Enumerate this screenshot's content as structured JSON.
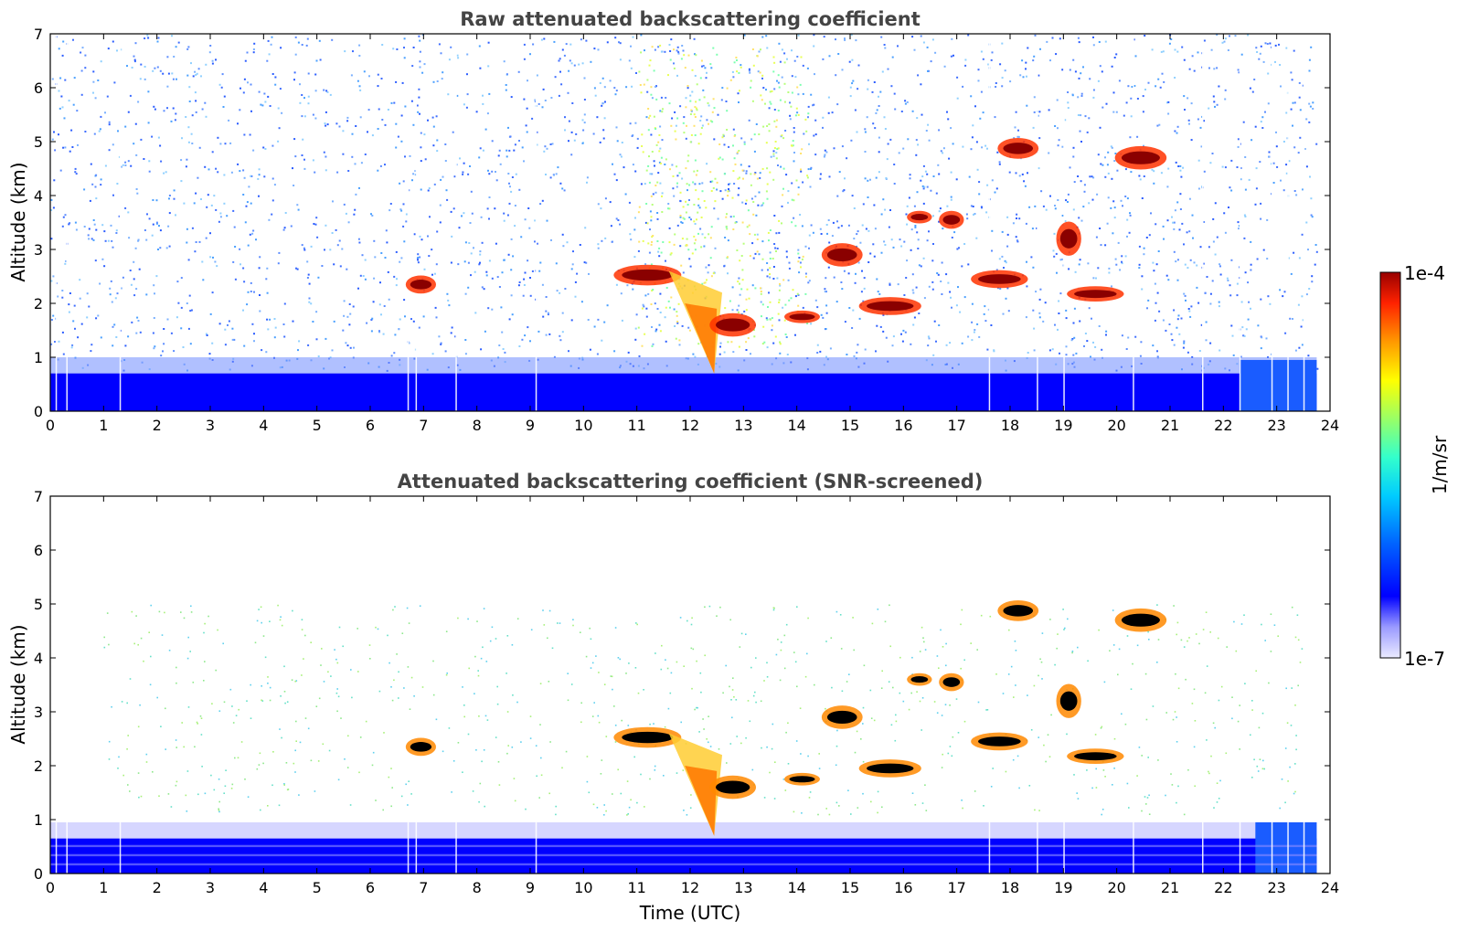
{
  "chart_data": [
    {
      "type": "heatmap",
      "panel": "top",
      "title": "Raw attenuated backscattering coefficient",
      "xlabel": "",
      "ylabel": "Altitude (km)",
      "xlim": [
        0,
        24
      ],
      "ylim": [
        0,
        7
      ],
      "xticks": [
        "0",
        "1",
        "2",
        "3",
        "4",
        "5",
        "6",
        "7",
        "8",
        "9",
        "10",
        "11",
        "12",
        "13",
        "14",
        "15",
        "16",
        "17",
        "18",
        "19",
        "20",
        "21",
        "22",
        "23",
        "24"
      ],
      "yticks": [
        "0",
        "1",
        "2",
        "3",
        "4",
        "5",
        "6",
        "7"
      ],
      "data_end_time": 23.75,
      "background_noise": "dense speckle at all altitudes",
      "boundary_layer": {
        "base_km": 0,
        "top_km": 0.7
      },
      "features": [
        {
          "t0": 6.7,
          "t1": 7.2,
          "z0": 2.2,
          "z1": 2.5
        },
        {
          "t0": 10.6,
          "t1": 11.8,
          "z0": 2.35,
          "z1": 2.7
        },
        {
          "t0": 11.6,
          "t1": 12.6,
          "z0": 0.7,
          "z1": 2.6
        },
        {
          "t0": 12.4,
          "t1": 13.2,
          "z0": 1.4,
          "z1": 1.8
        },
        {
          "t0": 13.8,
          "t1": 14.4,
          "z0": 1.65,
          "z1": 1.85
        },
        {
          "t0": 14.5,
          "t1": 15.2,
          "z0": 2.7,
          "z1": 3.1
        },
        {
          "t0": 15.2,
          "t1": 16.3,
          "z0": 1.8,
          "z1": 2.1
        },
        {
          "t0": 16.1,
          "t1": 16.5,
          "z0": 3.5,
          "z1": 3.7
        },
        {
          "t0": 16.7,
          "t1": 17.1,
          "z0": 3.4,
          "z1": 3.7
        },
        {
          "t0": 17.3,
          "t1": 18.3,
          "z0": 2.3,
          "z1": 2.6
        },
        {
          "t0": 17.8,
          "t1": 18.5,
          "z0": 4.7,
          "z1": 5.05
        },
        {
          "t0": 18.9,
          "t1": 19.3,
          "z0": 2.9,
          "z1": 3.5
        },
        {
          "t0": 19.1,
          "t1": 20.1,
          "z0": 2.05,
          "z1": 2.3
        },
        {
          "t0": 20.0,
          "t1": 20.9,
          "z0": 4.5,
          "z1": 4.9
        }
      ]
    },
    {
      "type": "heatmap",
      "panel": "bottom",
      "title": "Attenuated backscattering coefficient (SNR-screened)",
      "xlabel": "Time (UTC)",
      "ylabel": "Altitude (km)",
      "xlim": [
        0,
        24
      ],
      "ylim": [
        0,
        7
      ],
      "xticks": [
        "0",
        "1",
        "2",
        "3",
        "4",
        "5",
        "6",
        "7",
        "8",
        "9",
        "10",
        "11",
        "12",
        "13",
        "14",
        "15",
        "16",
        "17",
        "18",
        "19",
        "20",
        "21",
        "22",
        "23",
        "24"
      ],
      "yticks": [
        "0",
        "1",
        "2",
        "3",
        "4",
        "5",
        "6",
        "7"
      ],
      "data_end_time": 23.75,
      "background_noise": "sparse speckle between 1 and 5 km",
      "boundary_layer": {
        "base_km": 0,
        "top_km": 0.95
      }
    }
  ],
  "colorbar": {
    "label": "1/m/sr",
    "max_label": "1e-4",
    "min_label": "1e-7",
    "scale": "log",
    "colormap": [
      "#ebebff",
      "#9a9aff",
      "#0000ff",
      "#0066ff",
      "#00ccff",
      "#33ffcc",
      "#99ff66",
      "#ffff00",
      "#ff9900",
      "#ff2200",
      "#990000"
    ],
    "cloud_core_color_bottom": "#000000"
  }
}
